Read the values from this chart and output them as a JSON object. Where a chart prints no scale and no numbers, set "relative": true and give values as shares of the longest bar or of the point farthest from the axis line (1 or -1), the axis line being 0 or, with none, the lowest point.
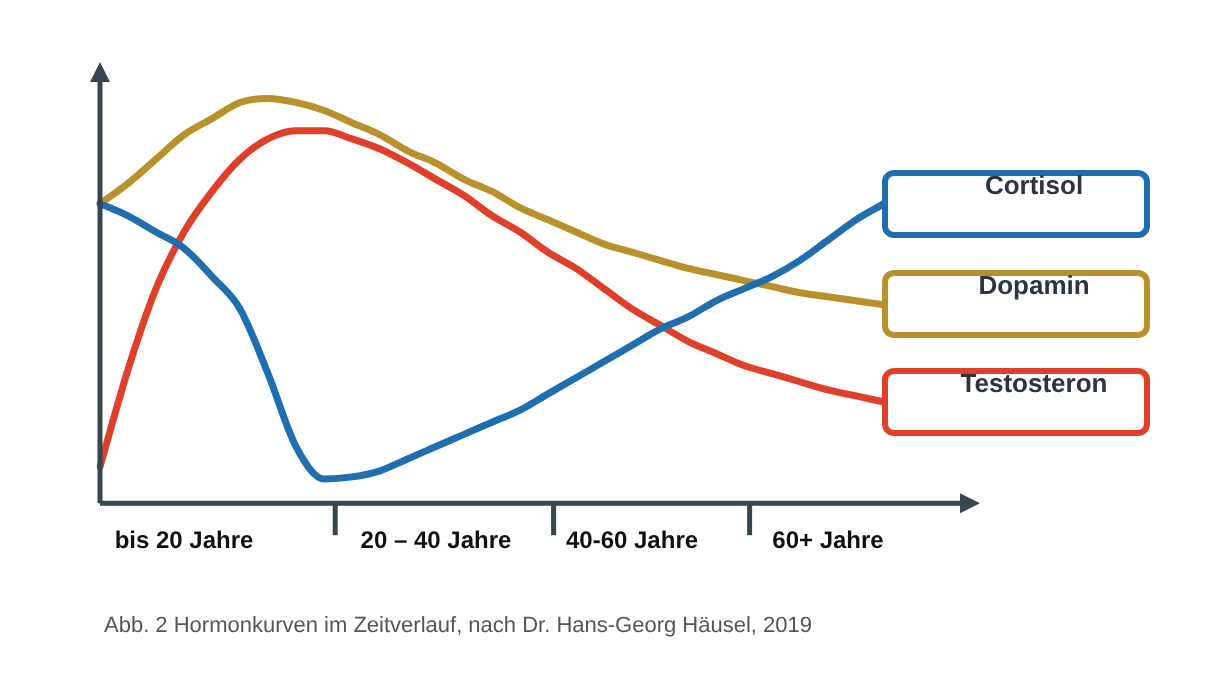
{
  "chart_data": {
    "type": "line",
    "relative": true,
    "categories": [
      null,
      null,
      null,
      "bis 20 Jahre",
      null,
      null,
      null,
      null,
      null,
      null,
      null,
      null,
      "20 – 40 Jahre",
      null,
      null,
      null,
      null,
      null,
      null,
      "40-60 Jahre",
      null,
      null,
      null,
      null,
      null,
      null,
      "60+ Jahre",
      null,
      null
    ],
    "series": [
      {
        "name": "Cortisol",
        "color": "#1f6fb0",
        "values": [
          0.74,
          0.71,
          0.67,
          0.63,
          0.56,
          0.48,
          0.32,
          0.14,
          0.06,
          0.065,
          0.08,
          0.11,
          0.14,
          0.17,
          0.2,
          0.23,
          0.27,
          0.31,
          0.35,
          0.39,
          0.43,
          0.46,
          0.5,
          0.53,
          0.56,
          0.6,
          0.65,
          0.7,
          0.74
        ]
      },
      {
        "name": "Dopamin",
        "color": "#b8912a",
        "values": [
          0.74,
          0.79,
          0.85,
          0.91,
          0.95,
          0.99,
          1.0,
          0.99,
          0.97,
          0.94,
          0.91,
          0.87,
          0.84,
          0.8,
          0.77,
          0.73,
          0.7,
          0.67,
          0.64,
          0.62,
          0.6,
          0.58,
          0.565,
          0.55,
          0.535,
          0.52,
          0.51,
          0.5,
          0.49
        ]
      },
      {
        "name": "Testosteron",
        "color": "#e0402a",
        "values": [
          0.09,
          0.33,
          0.53,
          0.67,
          0.77,
          0.85,
          0.9,
          0.92,
          0.92,
          0.9,
          0.875,
          0.84,
          0.8,
          0.76,
          0.71,
          0.67,
          0.62,
          0.58,
          0.53,
          0.48,
          0.44,
          0.4,
          0.37,
          0.34,
          0.32,
          0.3,
          0.28,
          0.265,
          0.25
        ]
      }
    ],
    "annotations": [
      "Abb. 2 Hormonkurven im Zeitverlauf, nach Dr. Hans-Georg Häusel, 2019"
    ]
  }
}
